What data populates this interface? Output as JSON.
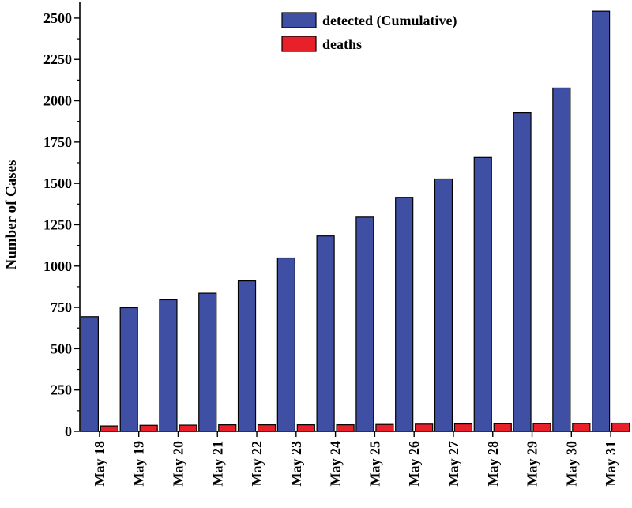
{
  "chart_data": {
    "type": "bar",
    "title": "",
    "xlabel": "",
    "ylabel": "Number of Cases",
    "ylim": [
      0,
      2600
    ],
    "yticks": [
      0,
      250,
      500,
      750,
      1000,
      1250,
      1500,
      1750,
      2000,
      2250,
      2500
    ],
    "grid": false,
    "legend_position": "top-center",
    "categories": [
      "May 18",
      "May 19",
      "May 20",
      "May 21",
      "May 22",
      "May 23",
      "May 24",
      "May 25",
      "May 26",
      "May 27",
      "May 28",
      "May 29",
      "May 30",
      "May 31"
    ],
    "series": [
      {
        "name": "detected (Cumulative)",
        "color": "#3f4fa3",
        "values": [
          694,
          748,
          796,
          836,
          910,
          1049,
          1182,
          1296,
          1416,
          1527,
          1657,
          1928,
          2077,
          2542
        ]
      },
      {
        "name": "deaths",
        "color": "#e8202a",
        "values": [
          33,
          37,
          38,
          40,
          40,
          40,
          40,
          42,
          44,
          45,
          46,
          47,
          48,
          50
        ]
      }
    ]
  }
}
